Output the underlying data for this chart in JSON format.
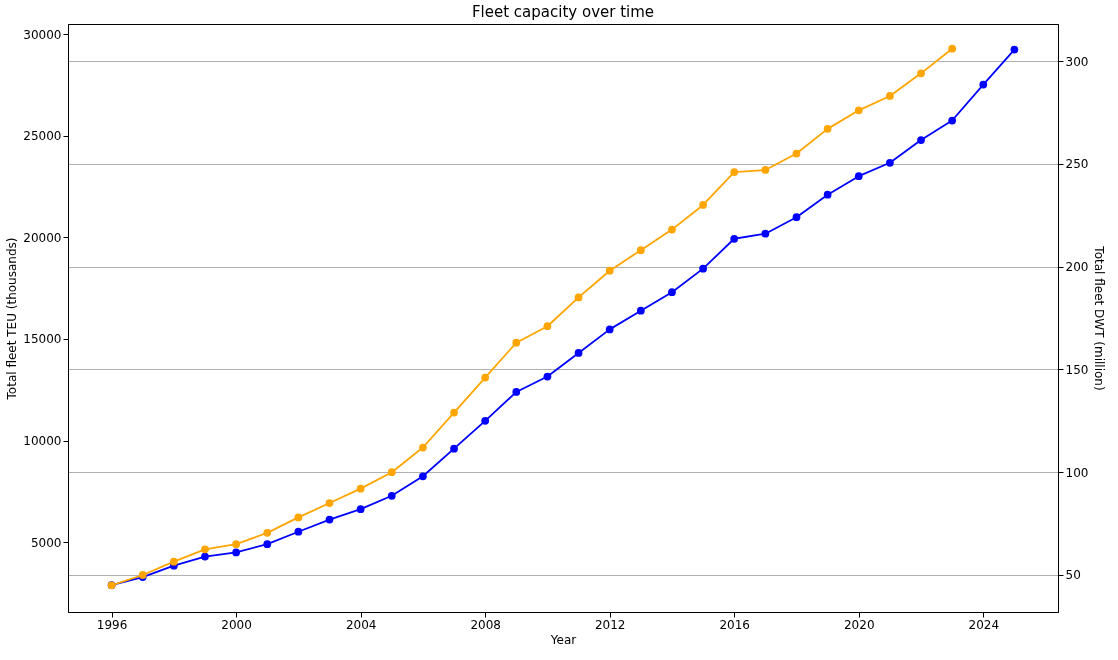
{
  "chart_data": {
    "type": "line",
    "title": "Fleet capacity over time",
    "xlabel": "Year",
    "ylabel": "Total fleet TEU (thousands)",
    "y2label": "Total fleet DWT (million)",
    "xlim": [
      1994.6,
      2026.4
    ],
    "xticks": [
      1996,
      2000,
      2004,
      2008,
      2012,
      2016,
      2020,
      2024
    ],
    "ylim": [
      1560,
      30500
    ],
    "yticks": [
      5000,
      10000,
      15000,
      20000,
      25000,
      30000
    ],
    "y2lim": [
      32,
      318
    ],
    "y2ticks": [
      50,
      100,
      150,
      200,
      250,
      300
    ],
    "grid": "y2",
    "marker": "circle",
    "line_style": "solid",
    "series": [
      {
        "color": "#0000ff",
        "x": [
          1996,
          1997,
          1998,
          1999,
          2000,
          2001,
          2002,
          2003,
          2004,
          2005,
          2006,
          2007,
          2008,
          2009,
          2010,
          2011,
          2012,
          2013,
          2014,
          2015,
          2016,
          2017,
          2018,
          2019,
          2020,
          2021,
          2022,
          2023,
          2024,
          2025
        ],
        "values": [
          2880,
          3280,
          3840,
          4290,
          4490,
          4900,
          5510,
          6110,
          6620,
          7280,
          8240,
          9600,
          10970,
          12390,
          13150,
          14310,
          15470,
          16390,
          17300,
          18460,
          19930,
          20180,
          20990,
          22100,
          23010,
          23670,
          24790,
          25750,
          27520,
          29240
        ]
      },
      {
        "color": "#ffa500",
        "axis": "y2",
        "x": [
          1996,
          1997,
          1998,
          1999,
          2000,
          2001,
          2002,
          2003,
          2004,
          2005,
          2006,
          2007,
          2008,
          2009,
          2010,
          2011,
          2012,
          2013,
          2014,
          2015,
          2016,
          2017,
          2018,
          2019,
          2020,
          2021,
          2022,
          2023
        ],
        "values": [
          45,
          50,
          56.5,
          62.5,
          65,
          70.5,
          78,
          85,
          92,
          100,
          112,
          129,
          146,
          163,
          171,
          185,
          198,
          208,
          218,
          230,
          246,
          247,
          255,
          267,
          276,
          283,
          294,
          306
        ]
      }
    ]
  }
}
